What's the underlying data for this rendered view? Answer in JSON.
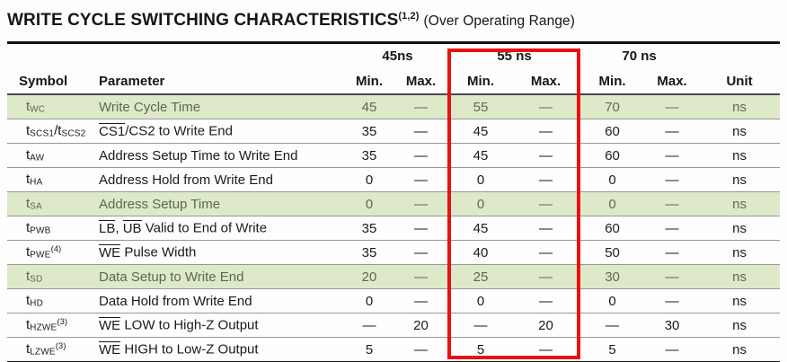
{
  "title": {
    "main": "WRITE CYCLE SWITCHING CHARACTERISTICS",
    "footnote": "(1,2)",
    "suffix": "(Over Operating Range)"
  },
  "colors": {
    "highlight_bg": "#dee9ca",
    "highlight_text": "#5a6950",
    "red_box": "#e81212"
  },
  "table": {
    "headers": {
      "symbol": "Symbol",
      "parameter": "Parameter",
      "min": "Min.",
      "max": "Max.",
      "unit": "Unit"
    },
    "speed_grades": [
      "45ns",
      "55 ns",
      "70 ns"
    ],
    "rows": [
      {
        "symbol": [
          {
            "t": "t"
          },
          {
            "t": "WC",
            "style": "sub"
          }
        ],
        "parameter": [
          {
            "t": "Write Cycle Time"
          }
        ],
        "values": [
          "45",
          "—",
          "55",
          "—",
          "70",
          "—"
        ],
        "unit": "ns",
        "highlighted": true
      },
      {
        "symbol": [
          {
            "t": "t"
          },
          {
            "t": "SCS1",
            "style": "sub"
          },
          {
            "t": "/t"
          },
          {
            "t": "SCS2",
            "style": "sub"
          }
        ],
        "parameter": [
          {
            "t": "CS1",
            "overline": true
          },
          {
            "t": "/CS2 to Write End"
          }
        ],
        "values": [
          "35",
          "—",
          "45",
          "—",
          "60",
          "—"
        ],
        "unit": "ns",
        "highlighted": false
      },
      {
        "symbol": [
          {
            "t": "t"
          },
          {
            "t": "AW",
            "style": "sub"
          }
        ],
        "parameter": [
          {
            "t": "Address Setup Time to Write End"
          }
        ],
        "values": [
          "35",
          "—",
          "45",
          "—",
          "60",
          "—"
        ],
        "unit": "ns",
        "highlighted": false
      },
      {
        "symbol": [
          {
            "t": "t"
          },
          {
            "t": "HA",
            "style": "sub"
          }
        ],
        "parameter": [
          {
            "t": "Address Hold from Write End"
          }
        ],
        "values": [
          "0",
          "—",
          "0",
          "—",
          "0",
          "—"
        ],
        "unit": "ns",
        "highlighted": false
      },
      {
        "symbol": [
          {
            "t": "t"
          },
          {
            "t": "SA",
            "style": "sub"
          }
        ],
        "parameter": [
          {
            "t": "Address Setup Time"
          }
        ],
        "values": [
          "0",
          "—",
          "0",
          "—",
          "0",
          "—"
        ],
        "unit": "ns",
        "highlighted": true
      },
      {
        "symbol": [
          {
            "t": "t"
          },
          {
            "t": "PWB",
            "style": "sub"
          }
        ],
        "parameter": [
          {
            "t": "LB",
            "overline": true
          },
          {
            "t": ", "
          },
          {
            "t": "UB",
            "overline": true
          },
          {
            "t": " Valid to End of Write"
          }
        ],
        "values": [
          "35",
          "—",
          "45",
          "—",
          "60",
          "—"
        ],
        "unit": "ns",
        "highlighted": false
      },
      {
        "symbol": [
          {
            "t": "t"
          },
          {
            "t": "PWE",
            "style": "sub"
          },
          {
            "t": "(4)",
            "style": "sup"
          }
        ],
        "parameter": [
          {
            "t": "WE",
            "overline": true
          },
          {
            "t": " Pulse Width"
          }
        ],
        "values": [
          "35",
          "—",
          "40",
          "—",
          "50",
          "—"
        ],
        "unit": "ns",
        "highlighted": false
      },
      {
        "symbol": [
          {
            "t": "t"
          },
          {
            "t": "SD",
            "style": "sub"
          }
        ],
        "parameter": [
          {
            "t": "Data Setup to Write End"
          }
        ],
        "values": [
          "20",
          "—",
          "25",
          "—",
          "30",
          "—"
        ],
        "unit": "ns",
        "highlighted": true
      },
      {
        "symbol": [
          {
            "t": "t"
          },
          {
            "t": "HD",
            "style": "sub"
          }
        ],
        "parameter": [
          {
            "t": "Data Hold from Write End"
          }
        ],
        "values": [
          "0",
          "—",
          "0",
          "—",
          "0",
          "—"
        ],
        "unit": "ns",
        "highlighted": false
      },
      {
        "symbol": [
          {
            "t": "t"
          },
          {
            "t": "HZWE",
            "style": "sub"
          },
          {
            "t": "(3)",
            "style": "sup"
          }
        ],
        "parameter": [
          {
            "t": "WE",
            "overline": true
          },
          {
            "t": " LOW to High-Z Output"
          }
        ],
        "values": [
          "—",
          "20",
          "—",
          "20",
          "—",
          "30"
        ],
        "unit": "ns",
        "highlighted": false
      },
      {
        "symbol": [
          {
            "t": "t"
          },
          {
            "t": "LZWE",
            "style": "sub"
          },
          {
            "t": "(3)",
            "style": "sup"
          }
        ],
        "parameter": [
          {
            "t": "WE",
            "overline": true
          },
          {
            "t": " HIGH to Low-Z Output"
          }
        ],
        "values": [
          "5",
          "—",
          "5",
          "—",
          "5",
          "—"
        ],
        "unit": "ns",
        "highlighted": false
      }
    ]
  }
}
